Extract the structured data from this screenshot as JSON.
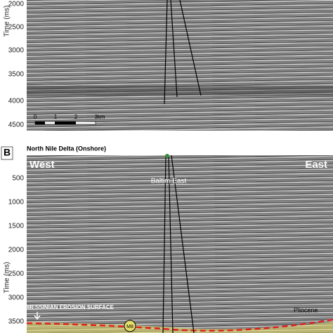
{
  "panel_a": {
    "axis_label": "Time (ms)",
    "ticks": [
      "2000",
      "2500",
      "3000",
      "3500",
      "4000",
      "4500"
    ],
    "scale_labels": [
      "0",
      "1",
      "2",
      "3km"
    ]
  },
  "panel_b": {
    "letter": "B",
    "title": "North Nile Delta (Onshore)",
    "axis_label": "Time (ms)",
    "ticks": [
      "500",
      "1000",
      "1500",
      "2000",
      "2500",
      "3000",
      "3500"
    ],
    "west": "West",
    "east": "East",
    "well": "Baltim East",
    "surface": "MESSINIAN EROSION SURFACE",
    "pliocene": "Pliocene",
    "marker": "M8"
  }
}
